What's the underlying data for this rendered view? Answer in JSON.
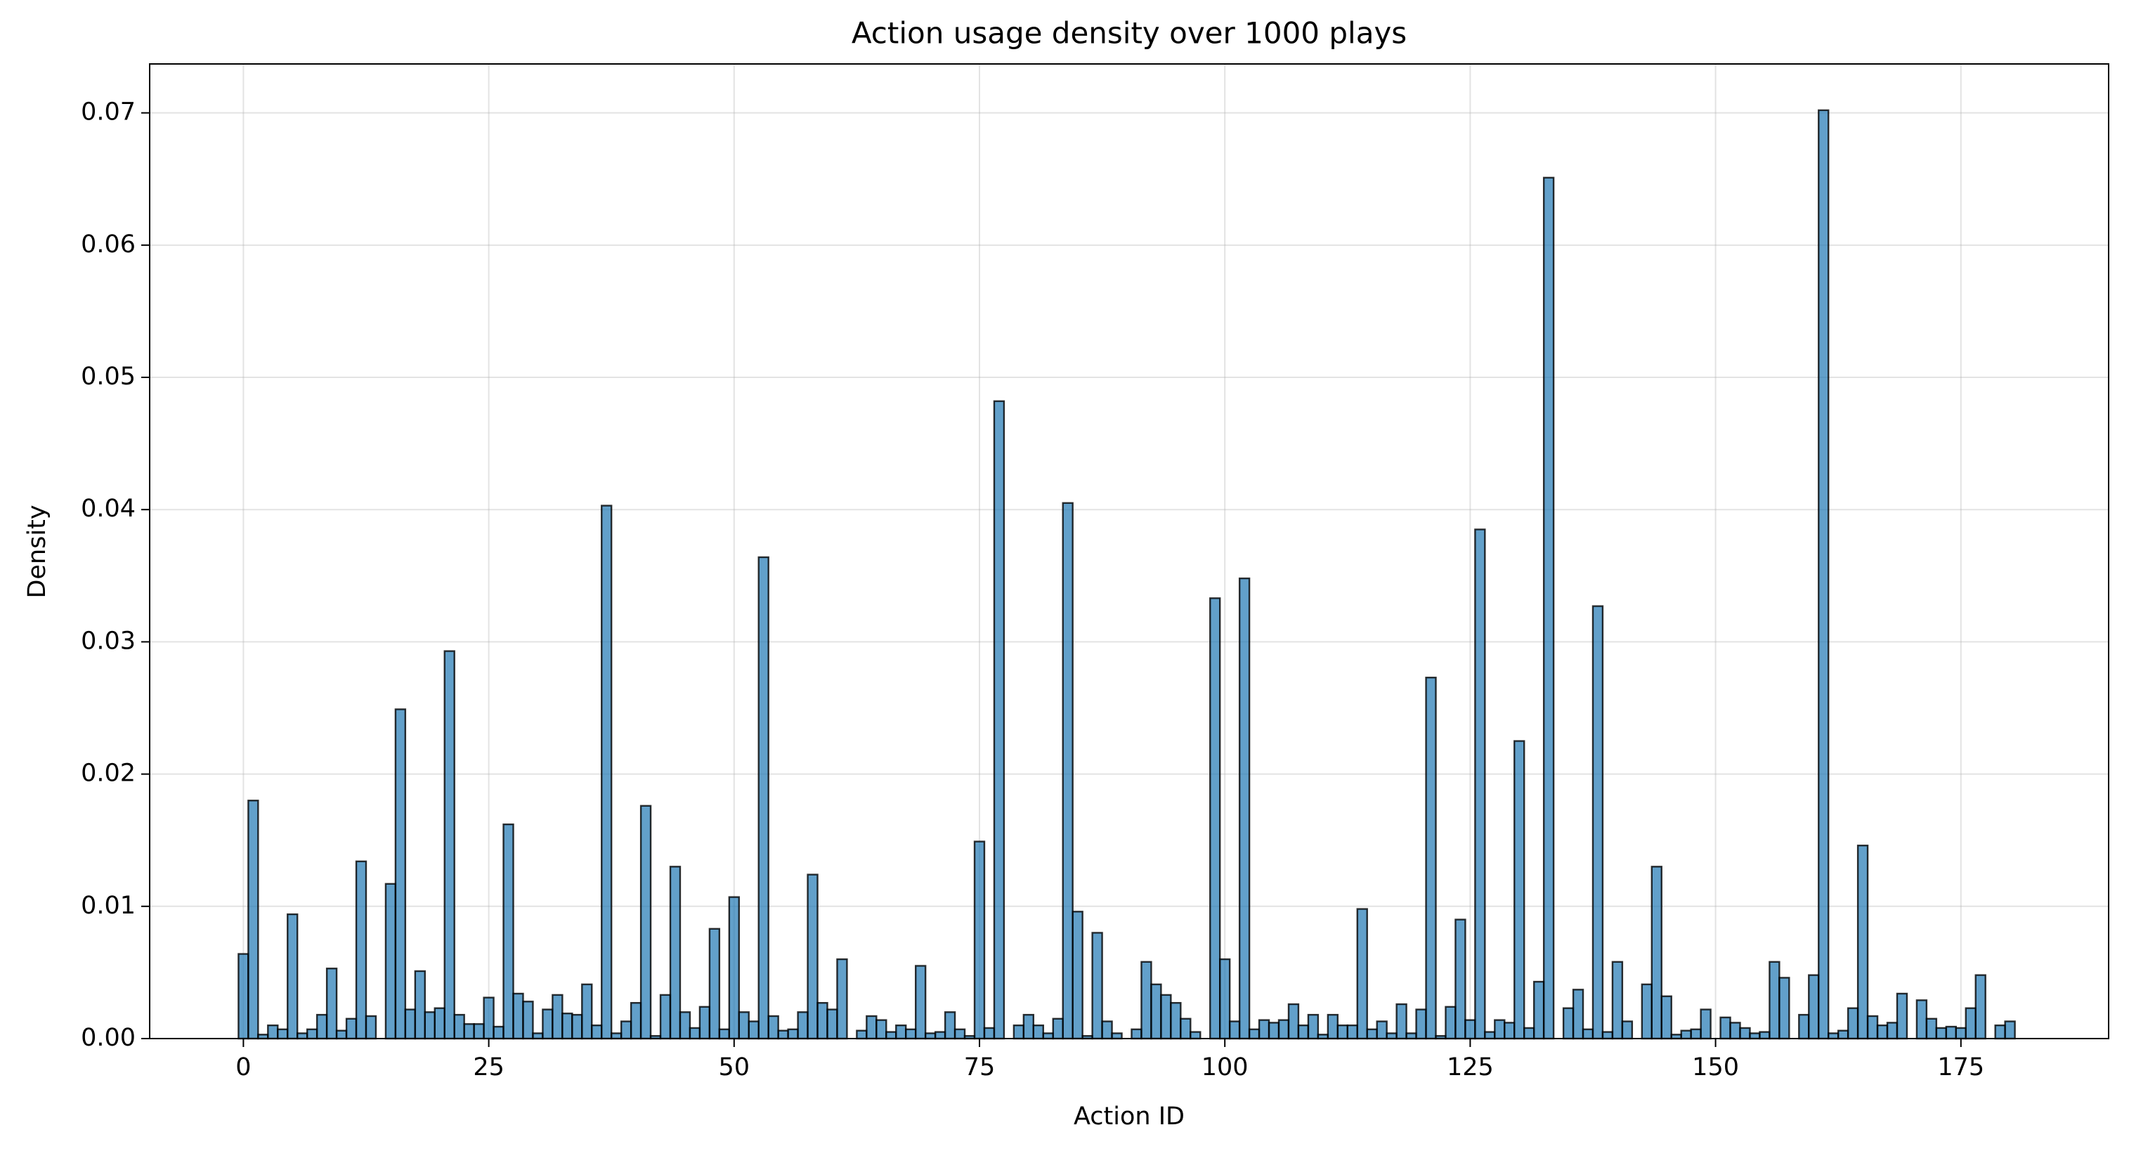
{
  "chart_data": {
    "type": "histogram",
    "title": "Action usage density over 1000 plays",
    "x_label": "Action ID",
    "y_label": "Density",
    "bins": [
      -0.5,
      0.5,
      1.5,
      2.5,
      3.5,
      4.5,
      5.5,
      6.5,
      7.5,
      8.5,
      9.5,
      10.5,
      11.5,
      12.5,
      13.5,
      14.5,
      15.5,
      16.5,
      17.5,
      18.5,
      19.5,
      20.5,
      21.5,
      22.5,
      23.5,
      24.5,
      25.5,
      26.5,
      27.5,
      28.5,
      29.5,
      30.5,
      31.5,
      32.5,
      33.5,
      34.5,
      35.5,
      36.5,
      37.5,
      38.5,
      39.5,
      40.5,
      41.5,
      42.5,
      43.5,
      44.5,
      45.5,
      46.5,
      47.5,
      48.5,
      49.5,
      50.5,
      51.5,
      52.5,
      53.5,
      54.5,
      55.5,
      56.5,
      57.5,
      58.5,
      59.5,
      60.5,
      61.5,
      62.5,
      63.5,
      64.5,
      65.5,
      66.5,
      67.5,
      68.5,
      69.5,
      70.5,
      71.5,
      72.5,
      73.5,
      74.5,
      75.5,
      76.5,
      77.5,
      78.5,
      79.5,
      80.5,
      81.5,
      82.5,
      83.5,
      84.5,
      85.5,
      86.5,
      87.5,
      88.5,
      89.5,
      90.5,
      91.5,
      92.5,
      93.5,
      94.5,
      95.5,
      96.5,
      97.5,
      98.5,
      99.5,
      100.5,
      101.5,
      102.5,
      103.5,
      104.5,
      105.5,
      106.5,
      107.5,
      108.5,
      109.5,
      110.5,
      111.5,
      112.5,
      113.5,
      114.5,
      115.5,
      116.5,
      117.5,
      118.5,
      119.5,
      120.5,
      121.5,
      122.5,
      123.5,
      124.5,
      125.5,
      126.5,
      127.5,
      128.5,
      129.5,
      130.5,
      131.5,
      132.5,
      133.5,
      134.5,
      135.5,
      136.5,
      137.5,
      138.5,
      139.5,
      140.5,
      141.5,
      142.5,
      143.5,
      144.5,
      145.5,
      146.5,
      147.5,
      148.5,
      149.5,
      150.5,
      151.5,
      152.5,
      153.5,
      154.5,
      155.5,
      156.5,
      157.5,
      158.5,
      159.5,
      160.5,
      161.5,
      162.5,
      163.5,
      164.5,
      165.5,
      166.5,
      167.5,
      168.5,
      169.5,
      170.5,
      171.5,
      172.5,
      173.5,
      174.5,
      175.5,
      176.5,
      177.5,
      178.5,
      179.5,
      180.5
    ],
    "values": [
      0.0064,
      0.018,
      0.0003,
      0.001,
      0.0007,
      0.0094,
      0.0004,
      0.0007,
      0.0018,
      0.0053,
      0.0006,
      0.0015,
      0.0134,
      0.0017,
      0.0,
      0.0117,
      0.0249,
      0.0022,
      0.0051,
      0.002,
      0.0023,
      0.0293,
      0.0018,
      0.0011,
      0.0011,
      0.0031,
      0.0009,
      0.0162,
      0.0034,
      0.0028,
      0.0004,
      0.0022,
      0.0033,
      0.0019,
      0.0018,
      0.0041,
      0.001,
      0.0403,
      0.0004,
      0.0013,
      0.0027,
      0.0176,
      0.0002,
      0.0033,
      0.013,
      0.002,
      0.0008,
      0.0024,
      0.0083,
      0.0007,
      0.0107,
      0.002,
      0.0013,
      0.0364,
      0.0017,
      0.0006,
      0.0007,
      0.002,
      0.0124,
      0.0027,
      0.0022,
      0.006,
      0.0,
      0.0006,
      0.0017,
      0.0014,
      0.0005,
      0.001,
      0.0007,
      0.0055,
      0.0004,
      0.0005,
      0.002,
      0.0007,
      0.0002,
      0.0149,
      0.0008,
      0.0482,
      0.0,
      0.001,
      0.0018,
      0.001,
      0.0004,
      0.0015,
      0.0405,
      0.0096,
      0.0002,
      0.008,
      0.0013,
      0.0004,
      0.0,
      0.0007,
      0.0058,
      0.0041,
      0.0033,
      0.0027,
      0.0015,
      0.0005,
      0.0,
      0.0333,
      0.006,
      0.0013,
      0.0348,
      0.0007,
      0.0014,
      0.0012,
      0.0014,
      0.0026,
      0.001,
      0.0018,
      0.0003,
      0.0018,
      0.001,
      0.001,
      0.0098,
      0.0007,
      0.0013,
      0.0004,
      0.0026,
      0.0004,
      0.0022,
      0.0273,
      0.0002,
      0.0024,
      0.009,
      0.0014,
      0.0385,
      0.0005,
      0.0014,
      0.0012,
      0.0225,
      0.0008,
      0.0043,
      0.0651,
      0.0,
      0.0023,
      0.0037,
      0.0007,
      0.0327,
      0.0005,
      0.0058,
      0.0013,
      0.0,
      0.0041,
      0.013,
      0.0032,
      0.0003,
      0.0006,
      0.0007,
      0.0022,
      0.0,
      0.0016,
      0.0012,
      0.0008,
      0.0004,
      0.0005,
      0.0058,
      0.0046,
      0.0,
      0.0018,
      0.0048,
      0.0702,
      0.0004,
      0.0006,
      0.0023,
      0.0146,
      0.0017,
      0.001,
      0.0012,
      0.0034,
      0.0,
      0.0029,
      0.0015,
      0.0008,
      0.0009,
      0.0008,
      0.0023,
      0.0048,
      0.0,
      0.001,
      0.0013
    ],
    "color": "#1f77b4",
    "xlim": [
      -9.55,
      190.05
    ],
    "xticks": [
      0,
      25,
      50,
      75,
      100,
      125,
      150,
      175
    ],
    "ylim": [
      0,
      0.0737
    ],
    "yticks": [
      {
        "value": 0,
        "label": "0.00"
      },
      0.01,
      0.02,
      0.03,
      0.04,
      0.05,
      0.06,
      0.07
    ],
    "grid": true
  }
}
